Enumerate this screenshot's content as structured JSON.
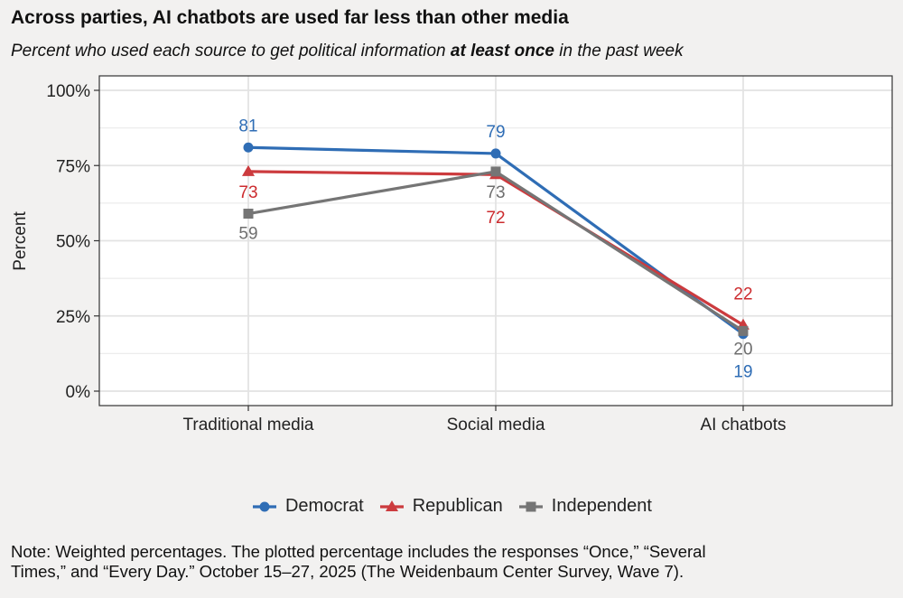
{
  "header": {
    "title": "Across parties, AI chatbots are used far less than other media",
    "subtitle_pre": "Percent who used each source to get political information ",
    "subtitle_bold": "at least once",
    "subtitle_post": " in the past week"
  },
  "chart_data": {
    "type": "line",
    "title": "Across parties, AI chatbots are used far less than other media",
    "subtitle": "Percent who used each source to get political information at least once in the past week",
    "xlabel": "",
    "ylabel": "Percent",
    "ylim": [
      0,
      100
    ],
    "yticks": [
      "0%",
      "25%",
      "50%",
      "75%",
      "100%"
    ],
    "ytick_values": [
      0,
      25,
      50,
      75,
      100
    ],
    "categories": [
      "Traditional media",
      "Social media",
      "AI chatbots"
    ],
    "grid": true,
    "legend_position": "bottom",
    "series": [
      {
        "name": "Democrat",
        "marker": "circle",
        "color": "#2f6db5",
        "values": [
          81,
          79,
          19
        ]
      },
      {
        "name": "Republican",
        "marker": "triangle",
        "color": "#cc3b3e",
        "values": [
          73,
          72,
          22
        ]
      },
      {
        "name": "Independent",
        "marker": "square",
        "color": "#757575",
        "values": [
          59,
          73,
          20
        ]
      }
    ]
  },
  "note": {
    "line1": "Note: Weighted percentages. The plotted percentage includes the responses “Once,” “Several",
    "line2": "Times,” and “Every Day.” October 15–27, 2025 (The Weidenbaum Center Survey, Wave 7)."
  }
}
